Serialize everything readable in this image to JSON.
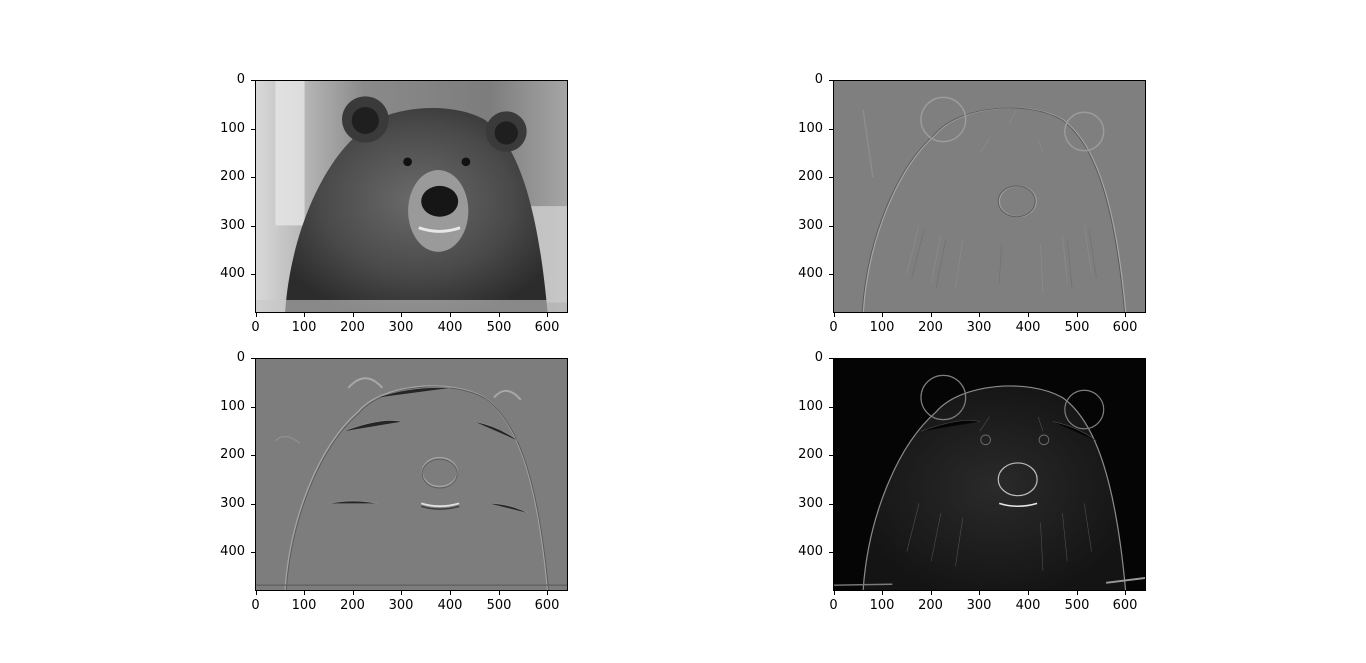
{
  "figure": {
    "panels": [
      {
        "id": "original",
        "description_name": "original-grayscale-bear",
        "x_ticks": [
          "0",
          "100",
          "200",
          "300",
          "400",
          "500",
          "600"
        ],
        "y_ticks": [
          "0",
          "100",
          "200",
          "300",
          "400"
        ],
        "x_limit": [
          0,
          640
        ],
        "y_limit": [
          480,
          0
        ]
      },
      {
        "id": "sobel-x",
        "description_name": "horizontal-gradient-bear",
        "x_ticks": [
          "0",
          "100",
          "200",
          "300",
          "400",
          "500",
          "600"
        ],
        "y_ticks": [
          "0",
          "100",
          "200",
          "300",
          "400"
        ],
        "x_limit": [
          0,
          640
        ],
        "y_limit": [
          480,
          0
        ]
      },
      {
        "id": "sobel-y",
        "description_name": "vertical-gradient-bear",
        "x_ticks": [
          "0",
          "100",
          "200",
          "300",
          "400",
          "500",
          "600"
        ],
        "y_ticks": [
          "0",
          "100",
          "200",
          "300",
          "400"
        ],
        "x_limit": [
          0,
          640
        ],
        "y_limit": [
          480,
          0
        ]
      },
      {
        "id": "magnitude",
        "description_name": "gradient-magnitude-bear",
        "x_ticks": [
          "0",
          "100",
          "200",
          "300",
          "400",
          "500",
          "600"
        ],
        "y_ticks": [
          "0",
          "100",
          "200",
          "300",
          "400"
        ],
        "x_limit": [
          0,
          640
        ],
        "y_limit": [
          480,
          0
        ]
      }
    ]
  }
}
